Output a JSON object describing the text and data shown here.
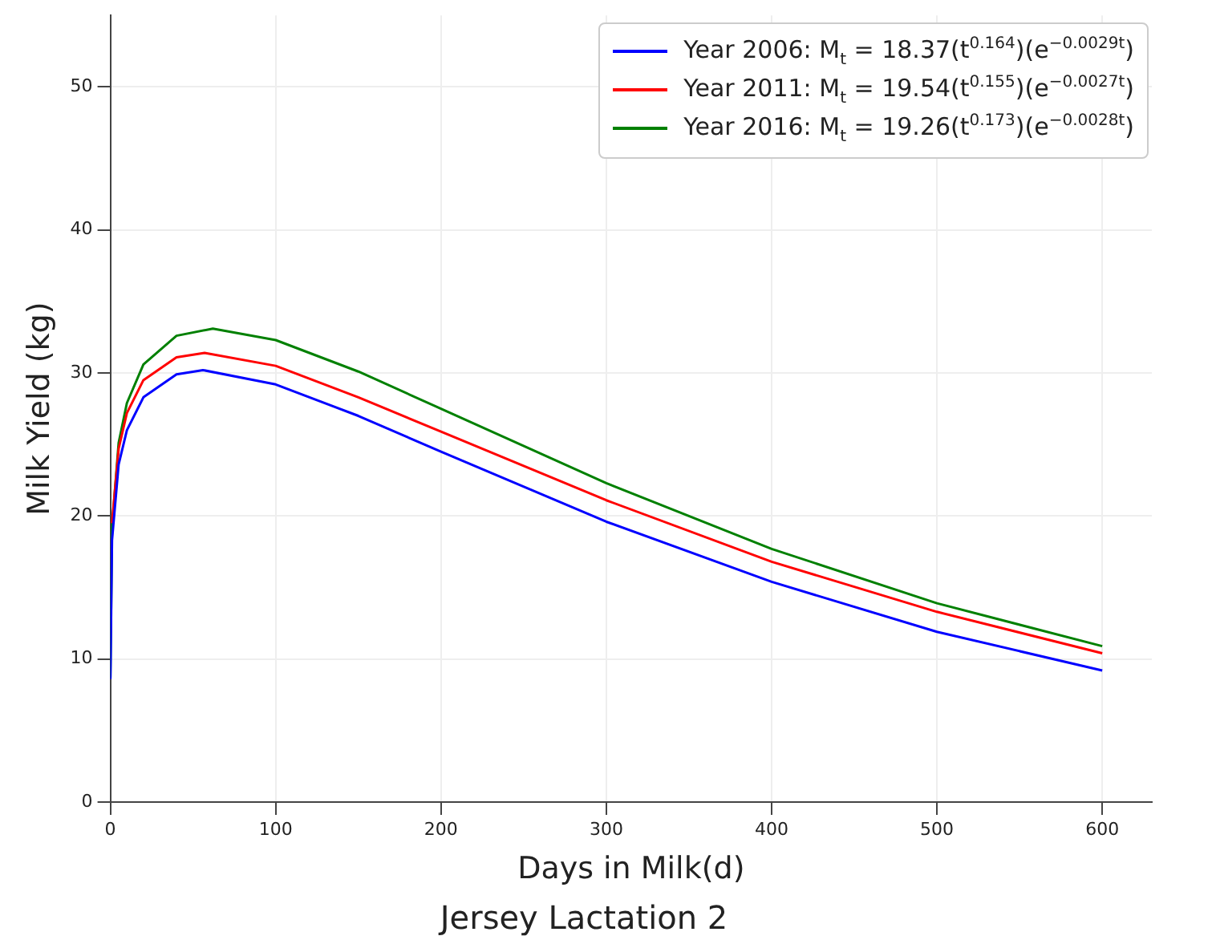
{
  "chart_data": {
    "type": "line",
    "title": "Jersey Lactation 2",
    "xlabel": "Days in Milk(d)",
    "ylabel": "Milk Yield (kg)",
    "xlim": [
      0,
      630
    ],
    "ylim": [
      0,
      55
    ],
    "xticks": [
      0,
      100,
      200,
      300,
      400,
      500,
      600
    ],
    "yticks": [
      0,
      10,
      20,
      30,
      40,
      50
    ],
    "grid": true,
    "legend": "top right",
    "marker": "none",
    "line_style": "solid",
    "series": [
      {
        "name": "Year 2006: M$_{t}$ = 18.37(t$^{0.164}$)(e$^{−0.0029t}$)",
        "color": "#0000ff",
        "x": [
          0.01,
          1,
          5,
          10,
          20,
          40,
          56,
          100,
          150,
          200,
          300,
          400,
          500,
          600
        ],
        "values": [
          8.6,
          18.3,
          23.6,
          26.0,
          28.3,
          29.9,
          30.2,
          29.2,
          27.0,
          24.5,
          19.6,
          15.4,
          11.9,
          9.2
        ]
      },
      {
        "name": "Year 2011: M$_{t}$ = 19.54(t$^{0.155}$)(e$^{−0.0027t}$)",
        "color": "#ff0000",
        "x": [
          1,
          5,
          10,
          20,
          40,
          57,
          100,
          150,
          200,
          300,
          400,
          500,
          600
        ],
        "values": [
          19.5,
          24.7,
          27.2,
          29.5,
          31.1,
          31.4,
          30.5,
          28.3,
          25.9,
          21.1,
          16.8,
          13.3,
          10.4
        ]
      },
      {
        "name": "Year 2016: M$_{t}$ = 19.26(t$^{0.173}$)(e$^{−0.0028t}$)",
        "color": "#008000",
        "x": [
          0.01,
          1,
          5,
          10,
          20,
          40,
          62,
          100,
          150,
          200,
          300,
          400,
          500,
          600
        ],
        "values": [
          8.7,
          19.2,
          25.1,
          27.9,
          30.6,
          32.6,
          33.1,
          32.3,
          30.1,
          27.5,
          22.3,
          17.7,
          13.9,
          10.9
        ]
      }
    ]
  }
}
